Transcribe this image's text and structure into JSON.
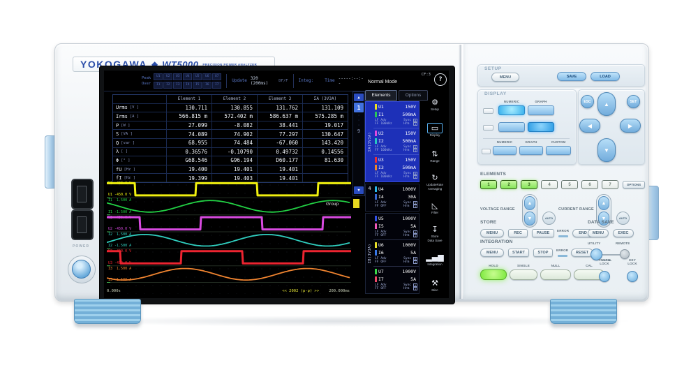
{
  "brand": {
    "logo": "YOKOGAWA",
    "diamond": "◆",
    "model": "WT5000",
    "tagline": "PRECISION POWER ANALYZER"
  },
  "screen": {
    "topbar": {
      "peak_label": "Peak",
      "over_label": "Over",
      "peak_cells": [
        "U1",
        "U2",
        "U3",
        "U4",
        "U5",
        "U6",
        "U7"
      ],
      "over_cells": [
        "I1",
        "I2",
        "I3",
        "I4",
        "I5",
        "I6",
        "I7"
      ],
      "update_label": "Update",
      "update_value": "320 (200ms)",
      "update_mode": "DF/F",
      "integ_label": "Integ:",
      "time_label": "Time",
      "time_value": "-----:--:--"
    },
    "mode_bar": {
      "mode": "Normal Mode",
      "cf": "CF:3",
      "help_icon": "?"
    },
    "tabs": [
      {
        "label": "Elements",
        "active": true
      },
      {
        "label": "Options",
        "active": false
      }
    ],
    "table": {
      "headers": [
        "Element 1",
        "Element 2",
        "Element 3",
        "ΣA (3V3A)"
      ],
      "rows": [
        {
          "name": "Urms",
          "unit": "[V   ]",
          "values": [
            "130.711",
            "130.855",
            "131.762",
            "131.109"
          ]
        },
        {
          "name": "Irms",
          "unit": "[A   ]",
          "values": [
            "566.815 m",
            "572.402 m",
            "586.637 m",
            "575.285 m"
          ]
        },
        {
          "name": "P",
          "unit": "[W   ]",
          "values": [
            "27.099",
            "-8.082",
            "38.441",
            "19.017"
          ]
        },
        {
          "name": "S",
          "unit": "[VA  ]",
          "values": [
            "74.089",
            "74.902",
            "77.297",
            "130.647"
          ]
        },
        {
          "name": "Q",
          "unit": "[var ]",
          "values": [
            "68.955",
            "74.484",
            "-67.060",
            "143.420"
          ]
        },
        {
          "name": "λ",
          "unit": "[    ]",
          "values": [
            "0.36576",
            "-0.10790",
            "0.49732",
            "0.14556"
          ]
        },
        {
          "name": "Φ",
          "unit": "[°   ]",
          "values": [
            "G68.546",
            "G96.194",
            "D60.177",
            "81.630"
          ]
        },
        {
          "name": "fU",
          "unit": "[Hz  ]",
          "values": [
            "19.400",
            "19.401",
            "19.401",
            ""
          ]
        },
        {
          "name": "fI",
          "unit": "[Hz  ]",
          "values": [
            "19.399",
            "19.403",
            "19.401",
            ""
          ]
        }
      ]
    },
    "pager": {
      "up": "▲",
      "pages": [
        "1",
        "·",
        "·",
        "·",
        "9"
      ],
      "active": "1",
      "down": "▼"
    },
    "element_groups": {
      "sigma_a": "ΣA(3V3A)",
      "el4_num": "4",
      "sigma_b": "ΣB(3V3A)"
    },
    "element_labels": {
      "lf": "LF",
      "ff": "FF",
      "adv": "Adv",
      "sync": "Sync",
      "hrm": "Hrm"
    },
    "elements": [
      {
        "u": "U1",
        "u_range": "150V",
        "u_color": "#f0e020",
        "i": "I1",
        "i_range": "500mA",
        "i_color": "#28c858",
        "freq": "100kHz",
        "box1": "U",
        "box2": "1"
      },
      {
        "u": "U2",
        "u_range": "150V",
        "u_color": "#e048e0",
        "i": "I2",
        "i_range": "500mA",
        "i_color": "#28c8c0",
        "freq": "100kHz",
        "box1": "U",
        "box2": "1"
      },
      {
        "u": "U3",
        "u_range": "150V",
        "u_color": "#e83038",
        "i": "I3",
        "i_range": "500mA",
        "i_color": "#f08828",
        "freq": "100kHz",
        "box1": "U",
        "box2": "1"
      },
      {
        "u": "U4",
        "u_range": "1000V",
        "u_color": "#28b8e8",
        "i": "I4",
        "i_range": "30A",
        "i_color": "#3868d0",
        "freq": "OFF",
        "box1": "U",
        "box2": "1"
      },
      {
        "u": "U5",
        "u_range": "1000V",
        "u_color": "#3050e8",
        "i": "I5",
        "i_range": "5A",
        "i_color": "#f058b8",
        "freq": "OFF",
        "box1": "U",
        "box2": "1"
      },
      {
        "u": "U6",
        "u_range": "1000V",
        "u_color": "#e8e028",
        "i": "I6",
        "i_range": "5A",
        "i_color": "#3878e8",
        "freq": "OFF",
        "box1": "U",
        "box2": "1"
      },
      {
        "u": "U7",
        "u_range": "1000V",
        "u_color": "#38d848",
        "i": "I7",
        "i_range": "5A",
        "i_color": "#f04868",
        "freq": "OFF",
        "box1": "U",
        "box2": "1"
      }
    ],
    "icons": [
      {
        "name": "setup",
        "glyph": "⚙",
        "label": "Setup",
        "active": false
      },
      {
        "name": "display",
        "glyph": "▭",
        "label": "Display",
        "active": true
      },
      {
        "name": "range",
        "glyph": "⇅",
        "label": "Range",
        "active": false
      },
      {
        "name": "update-rate-averaging",
        "glyph": "↻",
        "label": "UpdateRate",
        "label2": "Averaging",
        "active": false
      },
      {
        "name": "filter",
        "glyph": "◺",
        "label": "Filter",
        "active": false
      },
      {
        "name": "store-data-save",
        "glyph": "↧",
        "label": "Store",
        "label2": "Data Save",
        "active": false
      },
      {
        "name": "integration",
        "glyph": "▂▄▆",
        "label": "Integration",
        "active": false
      },
      {
        "name": "misc",
        "glyph": "⚒",
        "label": "Misc",
        "active": false
      }
    ],
    "wave": {
      "group_label": "Group",
      "group_page": "1",
      "t_start": "0.000s",
      "pp": "<< 2002 (p-p) >>",
      "t_end": "200.000ms",
      "cycles": 2,
      "traces": [
        {
          "ch": "U1",
          "top": "U1  450.0 V",
          "bot": "U1 -450.0 V",
          "color": "#f0f010",
          "type": "square",
          "phase": 0.27
        },
        {
          "ch": "I1",
          "top": "I1  1.500 A",
          "bot": "I1 -1.500 A",
          "color": "#22d044",
          "type": "sine",
          "phase": 0.4
        },
        {
          "ch": "U2",
          "top": "U2  450.0 V",
          "bot": "U2 -450.0 V",
          "color": "#d84ae0",
          "type": "square",
          "phase": 0.23
        },
        {
          "ch": "I2",
          "top": "I2  1.500 A",
          "bot": "I2 -1.500 A",
          "color": "#30d0c0",
          "type": "sine",
          "phase": 0.94
        },
        {
          "ch": "U3",
          "top": "U3  450.0 V",
          "bot": "U3 -450.0 V",
          "color": "#ec2430",
          "type": "square",
          "phase": 0.39
        },
        {
          "ch": "I3",
          "top": "I3  1.500 A",
          "bot": "I3 -1.500 A",
          "color": "#f08430",
          "type": "sine",
          "phase": 0.61
        }
      ]
    }
  },
  "panel": {
    "setup": {
      "title": "SETUP",
      "menu": "MENU",
      "save": "SAVE",
      "load": "LOAD"
    },
    "display": {
      "title": "DISPLAY",
      "row1_labels": [
        "NUMERIC",
        "GRAPH"
      ],
      "row2_labels": [
        "NUMERIC",
        "GRAPH",
        "CUSTOM"
      ]
    },
    "nav": {
      "esc": "ESC",
      "set": "SET",
      "up": "▲",
      "down": "▼",
      "left": "◀",
      "right": "▶"
    },
    "elements": {
      "title": "ELEMENTS",
      "keys": [
        "1",
        "2",
        "3",
        "4",
        "5",
        "6",
        "7"
      ],
      "lit": [
        "1",
        "2",
        "3"
      ],
      "options": "OPTIONS"
    },
    "ranges": {
      "voltage_label": "VOLTAGE RANGE",
      "current_label": "CURRENT RANGE",
      "auto": "AUTO",
      "up": "▲",
      "down": "▼"
    },
    "store": {
      "title": "STORE",
      "menu": "MENU",
      "rec": "REC",
      "pause": "PAUSE",
      "error": "ERROR",
      "end": "END"
    },
    "data_save": {
      "title": "DATA SAVE",
      "menu": "MENU",
      "exec": "EXEC"
    },
    "integration": {
      "title": "INTEGRATION",
      "menu": "MENU",
      "start": "START",
      "stop": "STOP",
      "error": "ERROR",
      "reset": "RESET"
    },
    "utility": {
      "utility": "UTILITY",
      "remote": "REMOTE",
      "local": "LOCAL"
    },
    "locks": {
      "touch_line1": "TOUCH",
      "touch_line2": "LOCK",
      "key_line1": "KEY",
      "key_line2": "LOCK"
    },
    "quick": {
      "hold": "HOLD",
      "single": "SINGLE",
      "null": "NULL",
      "cal": "CAL"
    }
  },
  "left_panel": {
    "power_label": "POWER"
  }
}
